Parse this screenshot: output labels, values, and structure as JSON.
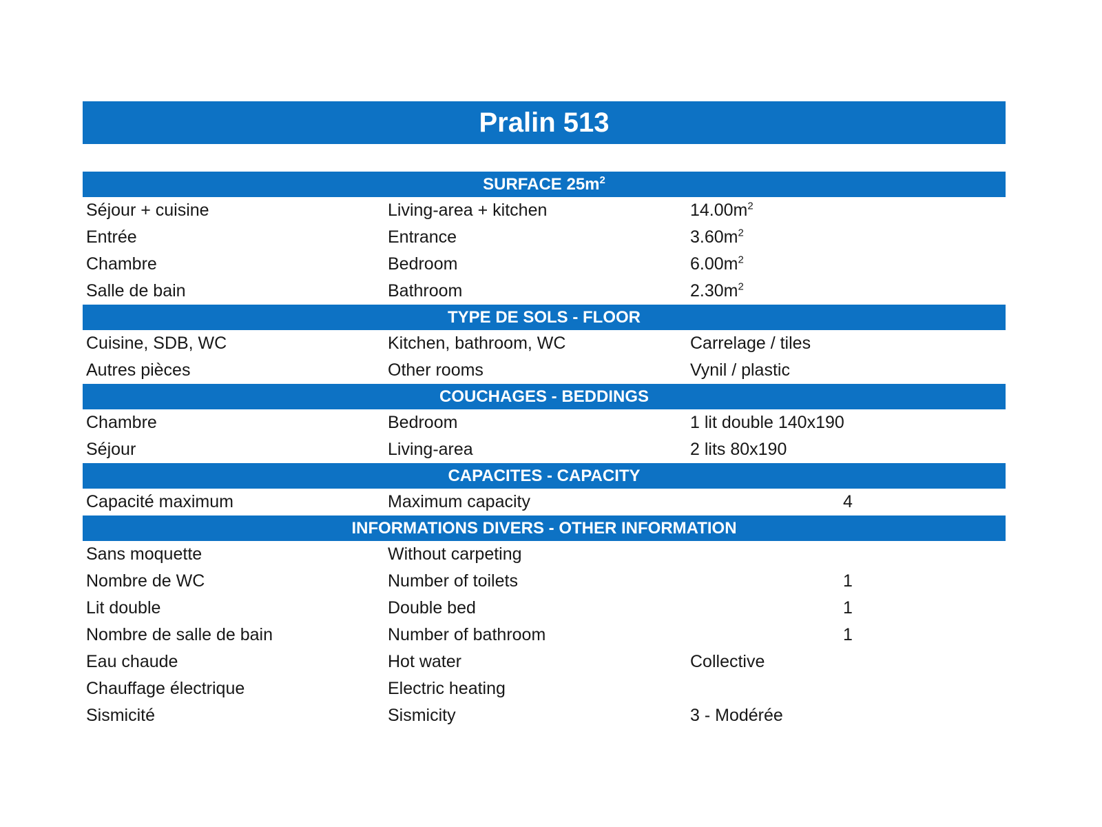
{
  "title": "Pralin 513",
  "colors": {
    "bar_blue": "#0d72c4",
    "bar_text": "#ffffff",
    "body_text": "#171717"
  },
  "sections": [
    {
      "header": "SURFACE 25m",
      "header_sup": "2",
      "rows": [
        {
          "fr": "Séjour + cuisine",
          "en": "Living-area + kitchen",
          "value": "14.00m",
          "value_sup": "2"
        },
        {
          "fr": "Entrée",
          "en": "Entrance",
          "value": "3.60m",
          "value_sup": "2"
        },
        {
          "fr": "Chambre",
          "en": "Bedroom",
          "value": "6.00m",
          "value_sup": "2"
        },
        {
          "fr": "Salle de bain",
          "en": "Bathroom",
          "value": "2.30m",
          "value_sup": "2"
        }
      ]
    },
    {
      "header": "TYPE DE SOLS - FLOOR",
      "rows": [
        {
          "fr": "Cuisine, SDB, WC",
          "en": "Kitchen, bathroom, WC",
          "value": "Carrelage / tiles"
        },
        {
          "fr": "Autres pièces",
          "en": "Other rooms",
          "value": "Vynil / plastic"
        }
      ]
    },
    {
      "header": "COUCHAGES - BEDDINGS",
      "rows": [
        {
          "fr": "Chambre",
          "en": "Bedroom",
          "value": "1 lit double 140x190"
        },
        {
          "fr": "Séjour",
          "en": "Living-area",
          "value": "2 lits 80x190"
        }
      ]
    },
    {
      "header": "CAPACITES - CAPACITY",
      "rows": [
        {
          "fr": "Capacité maximum",
          "en": "Maximum capacity",
          "num": "4"
        }
      ]
    },
    {
      "header": "INFORMATIONS DIVERS - OTHER INFORMATION",
      "rows": [
        {
          "fr": "Sans moquette",
          "en": "Without carpeting"
        },
        {
          "fr": "Nombre de WC",
          "en": "Number of toilets",
          "num": "1"
        },
        {
          "fr": "Lit double",
          "en": "Double bed",
          "num": "1"
        },
        {
          "fr": "Nombre de salle de bain",
          "en": "Number of bathroom",
          "num": "1"
        },
        {
          "fr": "Eau chaude",
          "en": "Hot water",
          "value": "Collective"
        },
        {
          "fr": "Chauffage électrique",
          "en": "Electric heating"
        },
        {
          "fr": "Sismicité",
          "en": "Sismicity",
          "value": "3 - Modérée"
        }
      ]
    }
  ]
}
